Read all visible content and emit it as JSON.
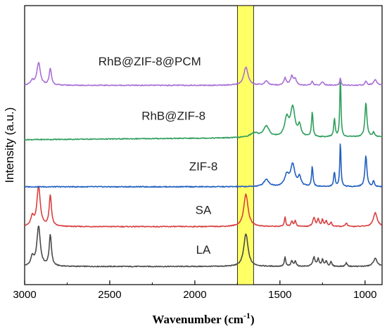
{
  "chart_data": {
    "type": "line",
    "xlabel": "Wavenumber (cm",
    "xlabel_sup": "-1",
    "xlabel_end": ")",
    "ylabel": "Intensity (a.u.)",
    "xlim": [
      3000,
      900
    ],
    "x_reversed": true,
    "x_ticks": [
      3000,
      2500,
      2000,
      1500,
      1000
    ],
    "x_tick_labels": [
      "3000",
      "2500",
      "2000",
      "1500",
      "1000"
    ],
    "y_ticks_shown": false,
    "grid": false,
    "highlight_band": {
      "x_range": [
        1750,
        1655
      ],
      "color": "#ffff66"
    },
    "series": [
      {
        "name": "LA",
        "color": "#4a4a4a",
        "baseline": 1.0,
        "peaks": [
          [
            2955,
            0.25,
            10
          ],
          [
            2918,
            1.1,
            12
          ],
          [
            2849,
            0.85,
            8
          ],
          [
            1700,
            0.9,
            15
          ],
          [
            1470,
            0.25,
            5
          ],
          [
            1430,
            0.15,
            6
          ],
          [
            1410,
            0.15,
            6
          ],
          [
            1300,
            0.25,
            8
          ],
          [
            1275,
            0.2,
            6
          ],
          [
            1250,
            0.18,
            6
          ],
          [
            1228,
            0.15,
            6
          ],
          [
            1200,
            0.12,
            6
          ],
          [
            1110,
            0.1,
            6
          ],
          [
            940,
            0.22,
            14
          ]
        ]
      },
      {
        "name": "SA",
        "color": "#d94040",
        "baseline": 2.1,
        "peaks": [
          [
            2955,
            0.25,
            10
          ],
          [
            2918,
            1.1,
            12
          ],
          [
            2849,
            0.85,
            8
          ],
          [
            1700,
            0.9,
            15
          ],
          [
            1470,
            0.25,
            5
          ],
          [
            1430,
            0.15,
            6
          ],
          [
            1410,
            0.15,
            6
          ],
          [
            1300,
            0.25,
            8
          ],
          [
            1275,
            0.2,
            6
          ],
          [
            1250,
            0.18,
            6
          ],
          [
            1228,
            0.15,
            6
          ],
          [
            1200,
            0.12,
            6
          ],
          [
            1110,
            0.1,
            6
          ],
          [
            940,
            0.38,
            14
          ]
        ]
      },
      {
        "name": "ZIF-8",
        "color": "#1f5fbf",
        "baseline": 3.2,
        "peaks": [
          [
            1580,
            0.2,
            18
          ],
          [
            1460,
            0.3,
            15
          ],
          [
            1425,
            0.6,
            15
          ],
          [
            1385,
            0.25,
            10
          ],
          [
            1310,
            0.55,
            5
          ],
          [
            1180,
            0.4,
            5
          ],
          [
            1145,
            1.25,
            4
          ],
          [
            995,
            0.85,
            7
          ],
          [
            950,
            0.15,
            6
          ]
        ]
      },
      {
        "name": "RhB@ZIF-8",
        "color": "#2e9e5b",
        "baseline": 4.5,
        "drift": 0.08,
        "peaks": [
          [
            1650,
            0.12,
            30
          ],
          [
            1580,
            0.3,
            20
          ],
          [
            1460,
            0.5,
            15
          ],
          [
            1425,
            0.8,
            15
          ],
          [
            1385,
            0.3,
            10
          ],
          [
            1310,
            0.7,
            5
          ],
          [
            1180,
            0.5,
            5
          ],
          [
            1145,
            1.7,
            4
          ],
          [
            995,
            0.95,
            7
          ],
          [
            950,
            0.12,
            6
          ]
        ]
      },
      {
        "name": "RhB@ZIF-8@PCM",
        "color": "#a86fd6",
        "baseline": 6.0,
        "peaks": [
          [
            2955,
            0.12,
            10
          ],
          [
            2918,
            0.62,
            12
          ],
          [
            2849,
            0.45,
            8
          ],
          [
            1700,
            0.5,
            15
          ],
          [
            1580,
            0.12,
            12
          ],
          [
            1470,
            0.2,
            8
          ],
          [
            1430,
            0.25,
            10
          ],
          [
            1410,
            0.15,
            8
          ],
          [
            1310,
            0.12,
            5
          ],
          [
            1250,
            0.1,
            8
          ],
          [
            1145,
            0.22,
            4
          ],
          [
            995,
            0.12,
            6
          ],
          [
            940,
            0.15,
            12
          ]
        ]
      }
    ],
    "annotations": [
      {
        "text": "LA",
        "x": 1950,
        "y": 1.35
      },
      {
        "text": "SA",
        "x": 1950,
        "y": 2.45
      },
      {
        "text": "ZIF-8",
        "x": 1950,
        "y": 3.65
      },
      {
        "text": "RhB@ZIF-8",
        "x": 2125,
        "y": 5.05
      },
      {
        "text": "RhB@ZIF-8@PCM",
        "x": 2265,
        "y": 6.55
      }
    ],
    "ylim": [
      0.5,
      8.2
    ]
  }
}
